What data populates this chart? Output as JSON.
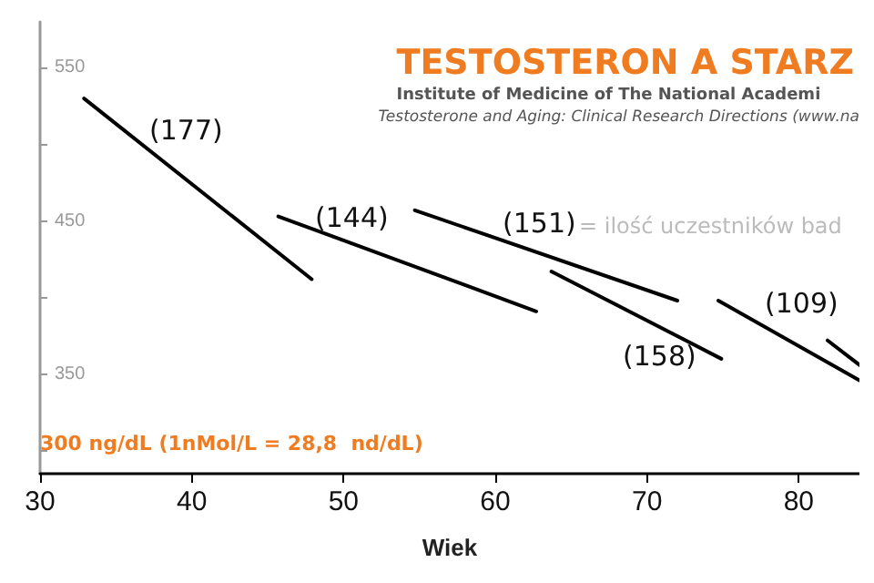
{
  "chart_data": {
    "type": "line",
    "title": "TESTOSTERON A STARZ",
    "subtitle": "Institute of Medicine of The National Academi",
    "xlabel": "Wiek",
    "xlim": [
      30,
      84
    ],
    "xticks": [
      30,
      40,
      50,
      60,
      70,
      80
    ],
    "ylim": [
      285,
      580
    ],
    "yticks": [
      {
        "value": 300,
        "label": null
      },
      350,
      {
        "value": 400,
        "label": null
      },
      450,
      {
        "value": 500,
        "label": null
      },
      550
    ],
    "grid": false,
    "marker": "none",
    "line_style": "solid",
    "series": [
      {
        "color": "#000000",
        "x": [
          32.9,
          47.9
        ],
        "values": [
          530,
          412
        ]
      },
      {
        "color": "#000000",
        "x": [
          45.7,
          62.7
        ],
        "values": [
          453,
          391
        ]
      },
      {
        "color": "#000000",
        "x": [
          54.7,
          72.0
        ],
        "values": [
          457,
          398
        ]
      },
      {
        "color": "#000000",
        "x": [
          63.7,
          74.9
        ],
        "values": [
          417,
          360
        ]
      },
      {
        "color": "#000000",
        "x": [
          74.7,
          84
        ],
        "values": [
          398,
          346
        ]
      },
      {
        "color": "#000000",
        "x": [
          81.9,
          84
        ],
        "values": [
          372,
          356
        ]
      }
    ],
    "annotations": [
      "(177)",
      "(144)",
      "(151)",
      "(158)",
      "(109)",
      "= ilość uczestników bad",
      "Testosterone and Aging: Clinical Research Directions (www.na",
      "300 ng/dL (1nMol/L = 28,8  nd/dL)"
    ]
  }
}
